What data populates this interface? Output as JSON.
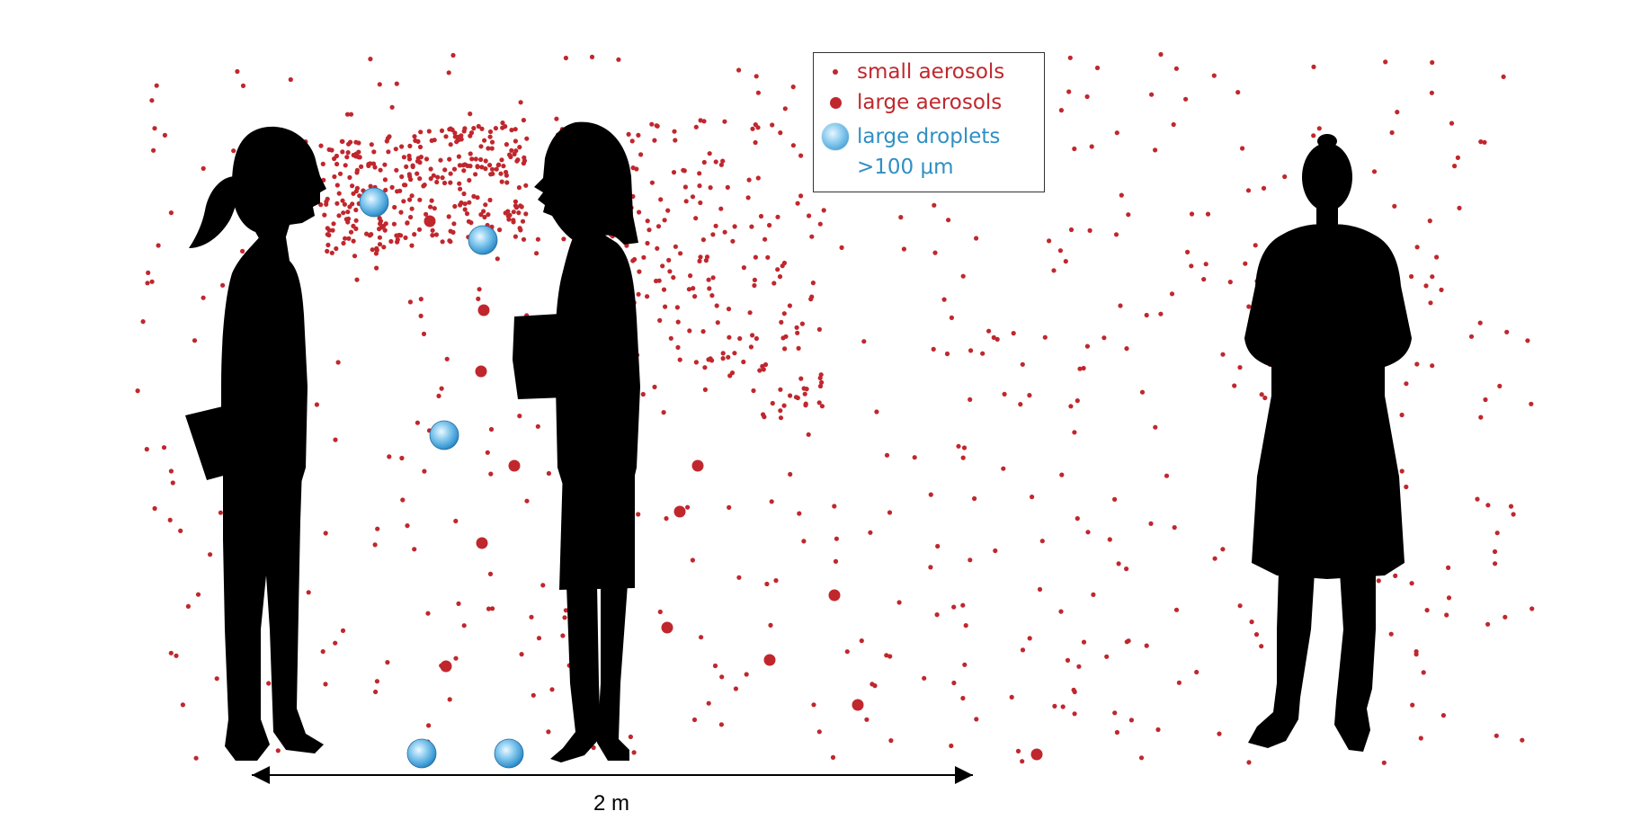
{
  "legend": {
    "items": [
      {
        "symbol": "small-aerosol-dot",
        "label": "small aerosols",
        "color": "#c0272d"
      },
      {
        "symbol": "large-aerosol-dot",
        "label": "large aerosols",
        "color": "#c0272d"
      },
      {
        "symbol": "large-droplet-circle",
        "label": "large droplets",
        "color": "#2f8fc4"
      }
    ],
    "droplet_size_note": ">100 μm"
  },
  "distance": {
    "label": "2 m"
  },
  "figures": [
    "person-left-speaking",
    "person-middle-speaking",
    "person-right-standing"
  ],
  "colors": {
    "aerosol": "#c0272d",
    "droplet": "#3c9ad4",
    "silhouette": "#000000"
  }
}
